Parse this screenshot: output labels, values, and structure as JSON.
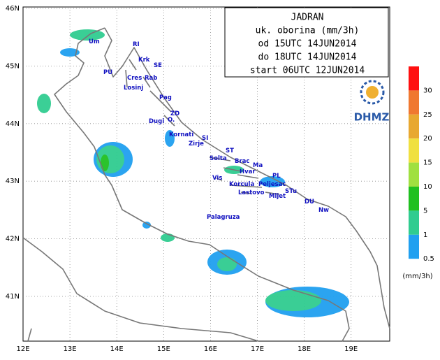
{
  "header": {
    "lines": [
      "JADRAN",
      "uk. oborina (mm/3h)",
      "od 15UTC 14JUN2014",
      "do 18UTC 14JUN2014",
      "start 06UTC 12JUN2014"
    ]
  },
  "lon_ticks": [
    "12E",
    "13E",
    "14E",
    "15E",
    "16E",
    "17E",
    "18E",
    "19E"
  ],
  "lat_ticks": [
    "46N",
    "45N",
    "44N",
    "43N",
    "42N",
    "41N"
  ],
  "places": [
    "Um",
    "RI",
    "Krk",
    "SE",
    "PU",
    "Cres",
    "Rab",
    "Losinj",
    "Pag",
    "ZD",
    "Dugi",
    "O.",
    "Kornati",
    "SI",
    "Zirje",
    "ST",
    "Solta",
    "Brac",
    "Ma",
    "Hvar",
    "PL",
    "Vis",
    "Korcula",
    "Peljesac",
    "Lastovo",
    "Mljet",
    "STu",
    "DU",
    "Nw",
    "Palagruza"
  ],
  "legend": {
    "levels": [
      "30",
      "25",
      "20",
      "15",
      "10",
      "5",
      "1",
      "0.5"
    ],
    "colors": [
      "#ff1010",
      "#f07830",
      "#e8a830",
      "#f0e040",
      "#a0e040",
      "#20c020",
      "#30cc90",
      "#20a0f0"
    ],
    "unit": "(mm/3h)"
  },
  "logo": {
    "text": "DHMZ"
  }
}
